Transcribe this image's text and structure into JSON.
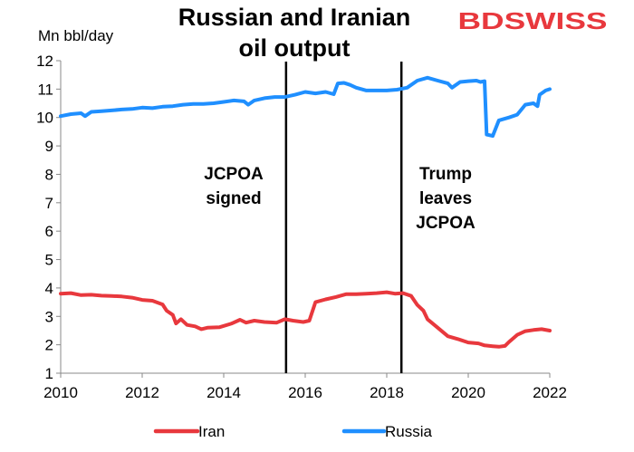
{
  "logo": {
    "text": "BDSWISS",
    "color": "#e8383d"
  },
  "chart_data": {
    "type": "line",
    "title": [
      "Russian and Iranian",
      "oil output"
    ],
    "ylabel": "Mn bbl/day",
    "xlabel": "",
    "xlim": [
      2010,
      2022
    ],
    "ylim": [
      1,
      12
    ],
    "x_ticks": [
      "2010",
      "2012",
      "2014",
      "2016",
      "2018",
      "2020",
      "2022"
    ],
    "y_ticks": [
      "1",
      "2",
      "3",
      "4",
      "5",
      "6",
      "7",
      "8",
      "9",
      "10",
      "11",
      "12"
    ],
    "grid": false,
    "legend_position": "bottom",
    "vlines": [
      {
        "x": 2015.53,
        "label": [
          "JCPOA",
          "signed"
        ]
      },
      {
        "x": 2018.36,
        "label": [
          "Trump",
          "leaves",
          "JCPOA"
        ]
      }
    ],
    "series": [
      {
        "name": "Iran",
        "color": "#e8383d",
        "points": [
          [
            2010.0,
            3.8
          ],
          [
            2010.25,
            3.82
          ],
          [
            2010.5,
            3.75
          ],
          [
            2010.75,
            3.76
          ],
          [
            2011.0,
            3.73
          ],
          [
            2011.25,
            3.72
          ],
          [
            2011.5,
            3.7
          ],
          [
            2011.75,
            3.66
          ],
          [
            2012.0,
            3.58
          ],
          [
            2012.25,
            3.55
          ],
          [
            2012.5,
            3.42
          ],
          [
            2012.6,
            3.2
          ],
          [
            2012.75,
            3.05
          ],
          [
            2012.83,
            2.75
          ],
          [
            2012.95,
            2.9
          ],
          [
            2013.1,
            2.7
          ],
          [
            2013.3,
            2.65
          ],
          [
            2013.45,
            2.55
          ],
          [
            2013.6,
            2.6
          ],
          [
            2013.9,
            2.62
          ],
          [
            2014.2,
            2.75
          ],
          [
            2014.4,
            2.88
          ],
          [
            2014.55,
            2.78
          ],
          [
            2014.75,
            2.85
          ],
          [
            2015.0,
            2.8
          ],
          [
            2015.3,
            2.78
          ],
          [
            2015.5,
            2.9
          ],
          [
            2015.7,
            2.85
          ],
          [
            2015.95,
            2.8
          ],
          [
            2016.1,
            2.85
          ],
          [
            2016.25,
            3.5
          ],
          [
            2016.5,
            3.6
          ],
          [
            2016.75,
            3.68
          ],
          [
            2017.0,
            3.78
          ],
          [
            2017.25,
            3.78
          ],
          [
            2017.5,
            3.8
          ],
          [
            2017.75,
            3.82
          ],
          [
            2018.0,
            3.85
          ],
          [
            2018.2,
            3.8
          ],
          [
            2018.4,
            3.82
          ],
          [
            2018.6,
            3.72
          ],
          [
            2018.75,
            3.4
          ],
          [
            2018.9,
            3.2
          ],
          [
            2019.0,
            2.9
          ],
          [
            2019.25,
            2.6
          ],
          [
            2019.5,
            2.3
          ],
          [
            2019.75,
            2.2
          ],
          [
            2020.0,
            2.08
          ],
          [
            2020.25,
            2.05
          ],
          [
            2020.4,
            1.98
          ],
          [
            2020.6,
            1.95
          ],
          [
            2020.75,
            1.93
          ],
          [
            2020.9,
            1.96
          ],
          [
            2021.0,
            2.1
          ],
          [
            2021.2,
            2.35
          ],
          [
            2021.4,
            2.48
          ],
          [
            2021.6,
            2.52
          ],
          [
            2021.8,
            2.55
          ],
          [
            2022.0,
            2.5
          ]
        ]
      },
      {
        "name": "Russia",
        "color": "#1f8fff",
        "points": [
          [
            2010.0,
            10.05
          ],
          [
            2010.25,
            10.12
          ],
          [
            2010.5,
            10.15
          ],
          [
            2010.6,
            10.05
          ],
          [
            2010.75,
            10.2
          ],
          [
            2011.0,
            10.22
          ],
          [
            2011.25,
            10.25
          ],
          [
            2011.5,
            10.28
          ],
          [
            2011.75,
            10.3
          ],
          [
            2012.0,
            10.35
          ],
          [
            2012.25,
            10.33
          ],
          [
            2012.5,
            10.38
          ],
          [
            2012.75,
            10.4
          ],
          [
            2013.0,
            10.45
          ],
          [
            2013.25,
            10.48
          ],
          [
            2013.5,
            10.48
          ],
          [
            2013.75,
            10.5
          ],
          [
            2014.0,
            10.55
          ],
          [
            2014.25,
            10.6
          ],
          [
            2014.5,
            10.57
          ],
          [
            2014.6,
            10.45
          ],
          [
            2014.75,
            10.6
          ],
          [
            2015.0,
            10.68
          ],
          [
            2015.25,
            10.72
          ],
          [
            2015.5,
            10.72
          ],
          [
            2015.75,
            10.8
          ],
          [
            2016.0,
            10.9
          ],
          [
            2016.25,
            10.85
          ],
          [
            2016.5,
            10.9
          ],
          [
            2016.7,
            10.82
          ],
          [
            2016.8,
            11.2
          ],
          [
            2016.95,
            11.22
          ],
          [
            2017.1,
            11.15
          ],
          [
            2017.25,
            11.05
          ],
          [
            2017.5,
            10.95
          ],
          [
            2017.75,
            10.95
          ],
          [
            2018.0,
            10.95
          ],
          [
            2018.25,
            10.98
          ],
          [
            2018.5,
            11.05
          ],
          [
            2018.75,
            11.3
          ],
          [
            2019.0,
            11.4
          ],
          [
            2019.25,
            11.3
          ],
          [
            2019.5,
            11.2
          ],
          [
            2019.6,
            11.05
          ],
          [
            2019.8,
            11.25
          ],
          [
            2020.0,
            11.28
          ],
          [
            2020.2,
            11.3
          ],
          [
            2020.3,
            11.25
          ],
          [
            2020.4,
            11.28
          ],
          [
            2020.45,
            9.4
          ],
          [
            2020.6,
            9.35
          ],
          [
            2020.75,
            9.9
          ],
          [
            2021.0,
            10.0
          ],
          [
            2021.2,
            10.1
          ],
          [
            2021.4,
            10.45
          ],
          [
            2021.6,
            10.5
          ],
          [
            2021.7,
            10.4
          ],
          [
            2021.75,
            10.8
          ],
          [
            2021.9,
            10.95
          ],
          [
            2022.0,
            11.0
          ]
        ]
      }
    ]
  }
}
